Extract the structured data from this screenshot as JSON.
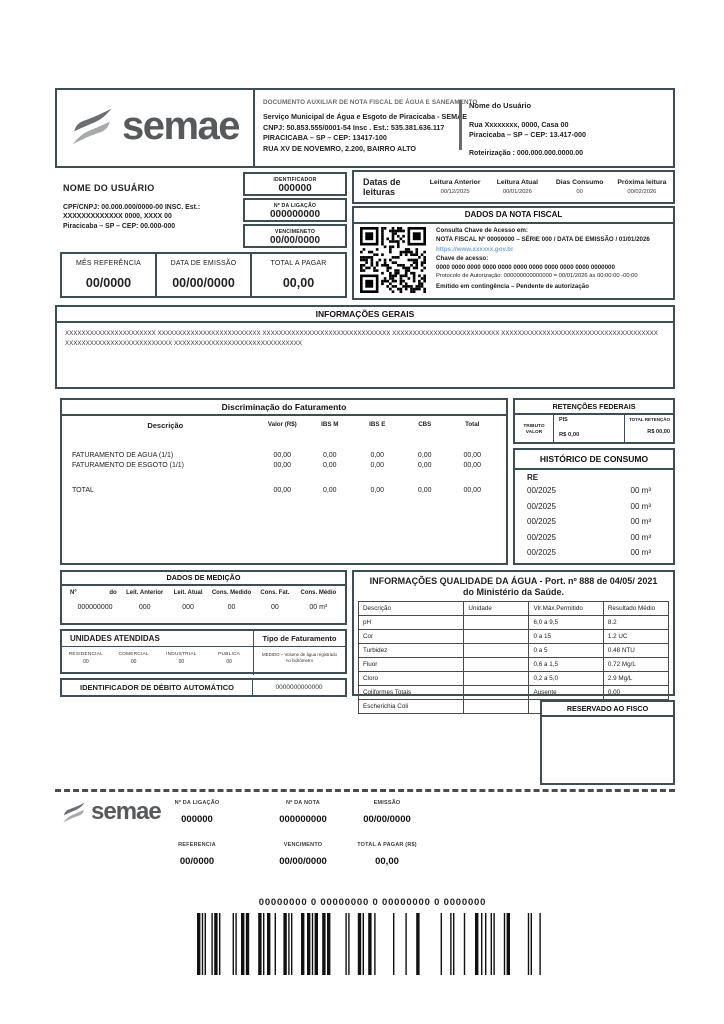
{
  "brand": {
    "name": "semae",
    "color_dark": "#58595b",
    "color_light": "#a7a9ac",
    "border_color": "#3e4e52",
    "link_color": "#7da7d8"
  },
  "header": {
    "doc_type": "DOCUMENTO AUXILIAR DE NOTA FISCAL DE ÁGUA E SANEAMENTO",
    "org_line1": "Serviço Municipal de Água e Esgoto de Piracicaba - SEMAE",
    "org_line2": "CNPJ: 50.853.555/0001-54 Insc . Est.: 535.381.636.117",
    "org_line3": "PIRACICABA – SP – CEP: 13417-100",
    "org_line4": "RUA XV DE NOVEMRO, 2.200, BAIRRO ALTO",
    "recipient": {
      "name": "Nome do Usuário",
      "address1": "Rua Xxxxxxxx, 0000, Casa 00",
      "address2": "Piracicaba – SP – CEP: 13.417-000",
      "routing": "Roteirização :  000.000.000.0000.00"
    }
  },
  "customer": {
    "title": "NOME DO USUÁRIO",
    "line1": "CPF/CNPJ:   00.000.000/0000-00    INSC.   Est.:",
    "line2": "XXXXXXXXXXXXX 0000, XXXX 00",
    "line3": "Piracicaba – SP – CEP: 00.000-000"
  },
  "id_boxes": {
    "identifier": {
      "label": "IDENTIFICADOR",
      "value": "000000"
    },
    "connection": {
      "label": "Nº DA LIGAÇÃO",
      "value": "000000000"
    },
    "due": {
      "label": "VENCIMENETO",
      "value": "00/00/0000"
    }
  },
  "summary": {
    "reference": {
      "label": "MÊS REFERÊNCIA",
      "value": "00/0000"
    },
    "emission": {
      "label": "DATA DE EMISSÃO",
      "value": "00/00/0000"
    },
    "total": {
      "label": "TOTAL A PAGAR",
      "value": "00,00"
    }
  },
  "readings": {
    "title": "Datas de leituras",
    "cols": [
      {
        "label": "Leitura Anterior",
        "value": "00/12/2025"
      },
      {
        "label": "Leitura Atual",
        "value": "00/01/2026"
      },
      {
        "label": "Dias Consumo",
        "value": "00"
      },
      {
        "label": "Próxima leitura",
        "value": "00/02/2026"
      }
    ]
  },
  "invoice": {
    "title": "DADOS DA NOTA FISCAL",
    "consult": "Consulta Chave de Acesso em:",
    "number_line": "NOTA FISCAL Nº 00000000 – SÉRIE 000 / DATA DE EMISSÃO / 01/01/2026",
    "url": "https://www.xxxxxx.gov.br",
    "key_label": "Chave de acesso:",
    "key_value": "0000 0000 0000 0000 0000 0000 0000 0000 0000 0000 0000000",
    "protocol": "Protocolo de Autorização: 000000000000000  =  00/01/2026  às  00:00:00 -00:00",
    "contingency": "Emitido em contingência – Pendente de autorização"
  },
  "general_info": {
    "title": "INFORMAÇÕES GERAIS",
    "line1": "XXXXXXXXXXXXXXXXXXXXXX   XXXXXXXXXXXXXXXXXXXXXXXXX   XXXXXXXXXXXXXXXXXXXXXXXXXXXXXXX   XXXXXXXXXXXXXXXXXXXXXXXXXX   XXXXXXXXXXXXXXXXXXXXXXXXXXXXXXXXXXXXXX",
    "line2": "XXXXXXXXXXXXXXXXXXXXXXXXXX XXXXXXXXXXXXXXXXXXXXXXXXXXXXXXX"
  },
  "billing": {
    "title": "Discriminação do Faturamento",
    "headers": [
      "Descrição",
      "Valor (R$)",
      "IBS M",
      "IBS E",
      "CBS",
      "Total"
    ],
    "rows": [
      [
        "FATURAMENTO DE AGUA (1/1)",
        "00,00",
        "0,00",
        "0,00",
        "0,00",
        "00,00"
      ],
      [
        "FATURAMENTO DE ESGOTO (1/1)",
        "00,00",
        "0,00",
        "0,00",
        "0,00",
        "00,00"
      ],
      [
        "TOTAL",
        "00,00",
        "0,00",
        "0,00",
        "0,00",
        "00,00"
      ]
    ]
  },
  "retentions": {
    "title": "RETENÇÕES FEDERAIS",
    "tributo_label": "TRIBUTO VALOR",
    "pis_label": "PIS",
    "pis_value": "R$ 0,00",
    "total_label": "TOTAL RETENÇÃO",
    "total_value": "R$ 00,00"
  },
  "history": {
    "title": "HISTÓRICO DE CONSUMO",
    "subtitle": "RE",
    "rows": [
      {
        "month": "00/2025",
        "volume": "00 m³"
      },
      {
        "month": "00/2025",
        "volume": "00 m³"
      },
      {
        "month": "00/2025",
        "volume": "00 m³"
      },
      {
        "month": "00/2025",
        "volume": "00 m³"
      },
      {
        "month": "00/2025",
        "volume": "00 m³"
      }
    ]
  },
  "measurement": {
    "title": "DADOS DE MEDIÇÃO",
    "headers": [
      "Nº",
      "do",
      "Leit. Anterior",
      "Leit. Atual",
      "Cons. Medido",
      "Cons. Fat.",
      "Cons. Médio"
    ],
    "values": [
      "000000000",
      "000",
      "000",
      "00",
      "00",
      "00 m³"
    ]
  },
  "units": {
    "title": "UNIDADES ATENDIDAS",
    "cols": [
      {
        "label": "RESIDENCIAL",
        "value": "00"
      },
      {
        "label": "COMERCIAL",
        "value": "00"
      },
      {
        "label": "INDUSTRIAL",
        "value": "00"
      },
      {
        "label": "PUBLICA",
        "value": "00"
      }
    ],
    "billing_type": {
      "title": "Tipo de Faturamento",
      "desc": "MEDIDO – Volume de água registrado no hidrômetro"
    }
  },
  "auto_debit": {
    "label": "IDENTIFICADOR DE DÉBITO AUTOMÁTICO",
    "value": "0000000000000"
  },
  "water_quality": {
    "title": "INFORMAÇÕES  QUALIDADE DA ÁGUA - Port. nº 888 de 04/05/ 2021 do Ministério da Saúde.",
    "headers": [
      "Descrição",
      "Unidade",
      "Vlr.Máx.Permitido",
      "Resultado Médio"
    ],
    "rows": [
      [
        "pH",
        "",
        "6,0 a 9,5",
        "8.2"
      ],
      [
        "Cor",
        "",
        "0 a 15",
        "1.2 UC"
      ],
      [
        "Turbidez",
        "",
        "0 a 5",
        "0.48 NTU"
      ],
      [
        "Fluor",
        "",
        "0,6 a 1,5",
        "0.72 Mg/L"
      ],
      [
        "Cloro",
        "",
        "0,2 a 5,0",
        "2.9 Mg/L"
      ],
      [
        "Coliformes Totais",
        "",
        "Ausente",
        "0.00"
      ],
      [
        "Escherichia Coli",
        "",
        "",
        ""
      ]
    ]
  },
  "fisco": {
    "title": "RESERVADO AO FISCO"
  },
  "stub": {
    "fields": [
      {
        "label": "Nº DA LIGAÇÃO",
        "value": "000000"
      },
      {
        "label": "Nº DA NOTA",
        "value": "000000000"
      },
      {
        "label": "EMISSÃO",
        "value": "00/00/0000"
      },
      {
        "label": "REFERENCIA",
        "value": "00/0000"
      },
      {
        "label": "VENCIMENTO",
        "value": "00/00/0000"
      },
      {
        "label": "TOTAL A PAGAR (R$)",
        "value": "00,00"
      }
    ]
  },
  "barcode": {
    "number": "00000000 0 00000000 0 00000000 0 0000000"
  }
}
